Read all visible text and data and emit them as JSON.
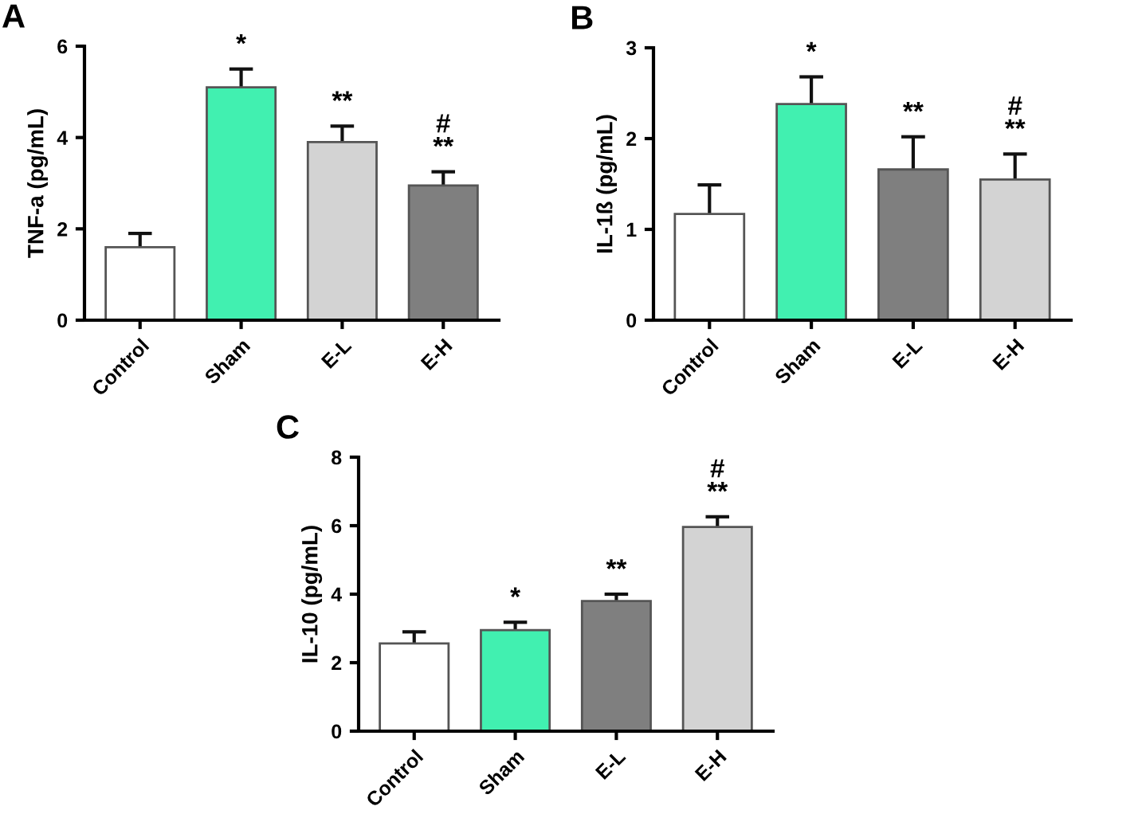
{
  "chart_data": [
    {
      "type": "bar",
      "title": "A",
      "ylabel": "TNF-a (pg/mL)",
      "categories": [
        "Control",
        "Sham",
        "E-L",
        "E-H"
      ],
      "values": [
        1.6,
        5.1,
        3.9,
        2.95
      ],
      "colors": [
        "#ffffff",
        "#41f0b0",
        "#d3d3d3",
        "#7f7f7f"
      ],
      "errors": [
        [
          1.6,
          1.9
        ],
        [
          5.1,
          5.5
        ],
        [
          3.9,
          4.25
        ],
        [
          2.95,
          3.25
        ]
      ],
      "ylim": [
        0,
        6
      ],
      "yticks": [
        0,
        2,
        4,
        6
      ],
      "annotations": [
        {
          "text": "*",
          "x": "Sham",
          "y": 5.5
        },
        {
          "text": "**",
          "x": "E-L",
          "y": 4.25
        },
        {
          "text": "#\n**",
          "x": "E-H",
          "y": 3.25
        }
      ]
    },
    {
      "type": "bar",
      "title": "B",
      "ylabel": "IL-1ß (pg/mL)",
      "categories": [
        "Control",
        "Sham",
        "E-L",
        "E-H"
      ],
      "values": [
        1.17,
        2.38,
        1.66,
        1.55
      ],
      "colors": [
        "#ffffff",
        "#41f0b0",
        "#7f7f7f",
        "#d3d3d3"
      ],
      "errors": [
        [
          1.17,
          1.49
        ],
        [
          2.38,
          2.68
        ],
        [
          1.66,
          2.02
        ],
        [
          1.55,
          1.83
        ]
      ],
      "ylim": [
        0,
        3
      ],
      "yticks": [
        0,
        1,
        2,
        3
      ],
      "annotations": [
        {
          "text": "*",
          "x": "Sham",
          "y": 2.68
        },
        {
          "text": "**",
          "x": "E-L",
          "y": 2.02
        },
        {
          "text": "#\n**",
          "x": "E-H",
          "y": 1.83
        }
      ]
    },
    {
      "type": "bar",
      "title": "C",
      "ylabel": "IL-10 (pg/mL)",
      "categories": [
        "Control",
        "Sham",
        "E-L",
        "E-H"
      ],
      "values": [
        2.56,
        2.95,
        3.8,
        5.96
      ],
      "colors": [
        "#ffffff",
        "#41f0b0",
        "#7f7f7f",
        "#d3d3d3"
      ],
      "errors": [
        [
          2.56,
          2.9
        ],
        [
          2.95,
          3.18
        ],
        [
          3.8,
          4.0
        ],
        [
          5.96,
          6.26
        ]
      ],
      "ylim": [
        0,
        8
      ],
      "yticks": [
        0,
        2,
        4,
        6,
        8
      ],
      "annotations": [
        {
          "text": "*",
          "x": "Sham",
          "y": 3.18
        },
        {
          "text": "**",
          "x": "E-L",
          "y": 4.0
        },
        {
          "text": "#\n**",
          "x": "E-H",
          "y": 6.26
        }
      ]
    }
  ]
}
